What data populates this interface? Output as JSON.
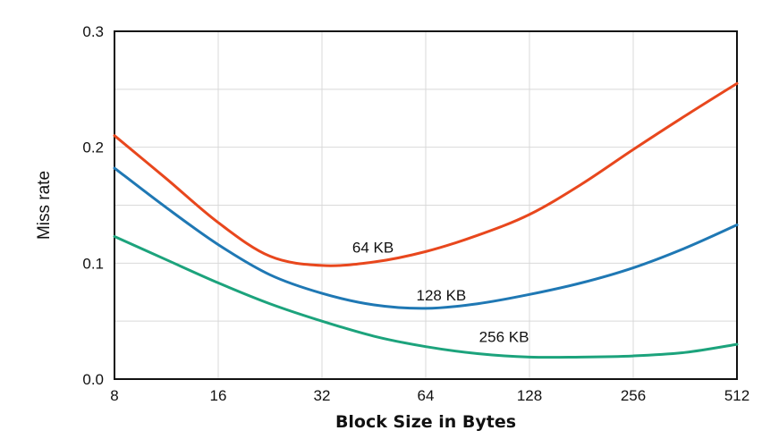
{
  "chart_data": {
    "type": "line",
    "xlabel": "Block Size in Bytes",
    "ylabel": "Miss rate",
    "x_scale": "log2",
    "x_ticks": [
      8,
      16,
      32,
      64,
      128,
      256,
      512
    ],
    "x_tick_labels": [
      "8",
      "16",
      "32",
      "64",
      "128",
      "256",
      "512"
    ],
    "y_ticks": [
      0.0,
      0.1,
      0.2,
      0.3
    ],
    "y_tick_labels": [
      "0.0",
      "0.1",
      "0.2",
      "0.3"
    ],
    "xlim": [
      8,
      512
    ],
    "ylim": [
      0,
      0.3
    ],
    "grid": true,
    "series": [
      {
        "name": "64 KB",
        "color": "#e8471d",
        "x": [
          8,
          11.3,
          16,
          22.6,
          32,
          45.3,
          64,
          90.5,
          128,
          181,
          256,
          362,
          512
        ],
        "y": [
          0.21,
          0.173,
          0.135,
          0.106,
          0.098,
          0.101,
          0.11,
          0.124,
          0.142,
          0.168,
          0.198,
          0.227,
          0.255
        ]
      },
      {
        "name": "128 KB",
        "color": "#1f78b4",
        "x": [
          8,
          11.3,
          16,
          22.6,
          32,
          45.3,
          64,
          90.5,
          128,
          181,
          256,
          362,
          512
        ],
        "y": [
          0.182,
          0.148,
          0.116,
          0.09,
          0.074,
          0.064,
          0.061,
          0.065,
          0.073,
          0.083,
          0.096,
          0.113,
          0.133
        ]
      },
      {
        "name": "256 KB",
        "color": "#1ca37c",
        "x": [
          8,
          11.3,
          16,
          22.6,
          32,
          45.3,
          64,
          90.5,
          128,
          181,
          256,
          362,
          512
        ],
        "y": [
          0.123,
          0.103,
          0.083,
          0.065,
          0.05,
          0.037,
          0.028,
          0.022,
          0.019,
          0.019,
          0.02,
          0.023,
          0.03
        ]
      }
    ],
    "annotations": [
      {
        "text": "64 KB",
        "x": 45,
        "y": 0.109
      },
      {
        "text": "128 KB",
        "x": 71,
        "y": 0.068
      },
      {
        "text": "256 KB",
        "x": 108,
        "y": 0.032
      }
    ]
  }
}
